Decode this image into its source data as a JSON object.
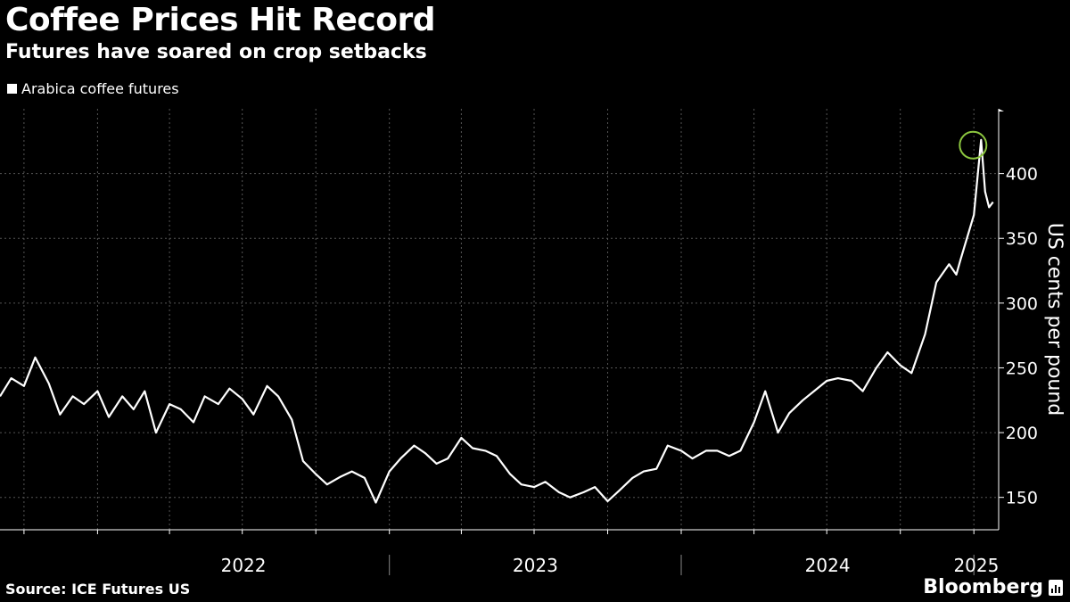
{
  "header": {
    "title": "Coffee Prices Hit Record",
    "subtitle": "Futures have soared on crop setbacks"
  },
  "footer": {
    "source": "Source: ICE Futures US",
    "brand": "Bloomberg"
  },
  "colors": {
    "background": "#000000",
    "line": "#ffffff",
    "grid": "#555555",
    "highlight": "#8cc63f"
  },
  "chart_data": {
    "type": "line",
    "title": "Coffee Prices Hit Record",
    "subtitle": "Futures have soared on crop setbacks",
    "ylabel": "US cents per pound",
    "xlabel": "",
    "ylim": [
      125,
      450
    ],
    "yticks": [
      150,
      200,
      250,
      300,
      350,
      400
    ],
    "y_axis_position": "right",
    "grid": true,
    "legend_placement": "top-left",
    "x_tick_labels": [
      "2022",
      "2023",
      "2024",
      "2025"
    ],
    "series": [
      {
        "name": "Arabica coffee futures",
        "x": [
          "2021-09-01",
          "2021-09-15",
          "2021-10-01",
          "2021-10-15",
          "2021-11-01",
          "2021-11-15",
          "2021-12-01",
          "2021-12-15",
          "2022-01-01",
          "2022-01-15",
          "2022-02-01",
          "2022-02-15",
          "2022-03-01",
          "2022-03-15",
          "2022-04-01",
          "2022-04-15",
          "2022-05-01",
          "2022-05-15",
          "2022-06-01",
          "2022-06-15",
          "2022-07-01",
          "2022-07-15",
          "2022-08-01",
          "2022-08-15",
          "2022-09-01",
          "2022-09-15",
          "2022-10-01",
          "2022-10-15",
          "2022-11-01",
          "2022-11-15",
          "2022-12-01",
          "2022-12-15",
          "2023-01-01",
          "2023-01-15",
          "2023-02-01",
          "2023-02-15",
          "2023-03-01",
          "2023-03-15",
          "2023-04-01",
          "2023-04-15",
          "2023-05-01",
          "2023-05-15",
          "2023-06-01",
          "2023-06-15",
          "2023-07-01",
          "2023-07-15",
          "2023-08-01",
          "2023-08-15",
          "2023-09-01",
          "2023-09-15",
          "2023-10-01",
          "2023-10-15",
          "2023-11-01",
          "2023-11-15",
          "2023-12-01",
          "2023-12-15",
          "2024-01-01",
          "2024-01-15",
          "2024-02-01",
          "2024-02-15",
          "2024-03-01",
          "2024-03-15",
          "2024-04-01",
          "2024-04-15",
          "2024-05-01",
          "2024-05-15",
          "2024-06-01",
          "2024-06-15",
          "2024-07-01",
          "2024-07-15",
          "2024-08-01",
          "2024-08-15",
          "2024-09-01",
          "2024-09-15",
          "2024-10-01",
          "2024-10-15",
          "2024-11-01",
          "2024-11-15",
          "2024-12-01",
          "2024-12-10",
          "2024-12-15",
          "2025-01-01",
          "2025-01-10"
        ],
        "values": [
          228,
          242,
          236,
          258,
          238,
          214,
          228,
          222,
          232,
          212,
          228,
          218,
          232,
          200,
          222,
          218,
          208,
          228,
          222,
          234,
          226,
          214,
          236,
          228,
          210,
          178,
          168,
          160,
          166,
          170,
          165,
          146,
          170,
          180,
          190,
          184,
          176,
          180,
          196,
          188,
          186,
          182,
          168,
          160,
          158,
          162,
          154,
          150,
          154,
          158,
          147,
          155,
          165,
          170,
          172,
          190,
          186,
          180,
          186,
          186,
          182,
          186,
          208,
          232,
          200,
          215,
          225,
          232,
          240,
          242,
          240,
          232,
          250,
          262,
          252,
          246,
          276,
          316,
          330,
          322,
          333,
          368,
          426
        ]
      }
    ],
    "extra_points": {
      "x": [
        "2025-01-15",
        "2025-01-20",
        "2025-01-25"
      ],
      "values": [
        386,
        374,
        378
      ]
    },
    "highlight": {
      "x": "2024-12-31",
      "value": 424,
      "marker": "circle"
    }
  }
}
